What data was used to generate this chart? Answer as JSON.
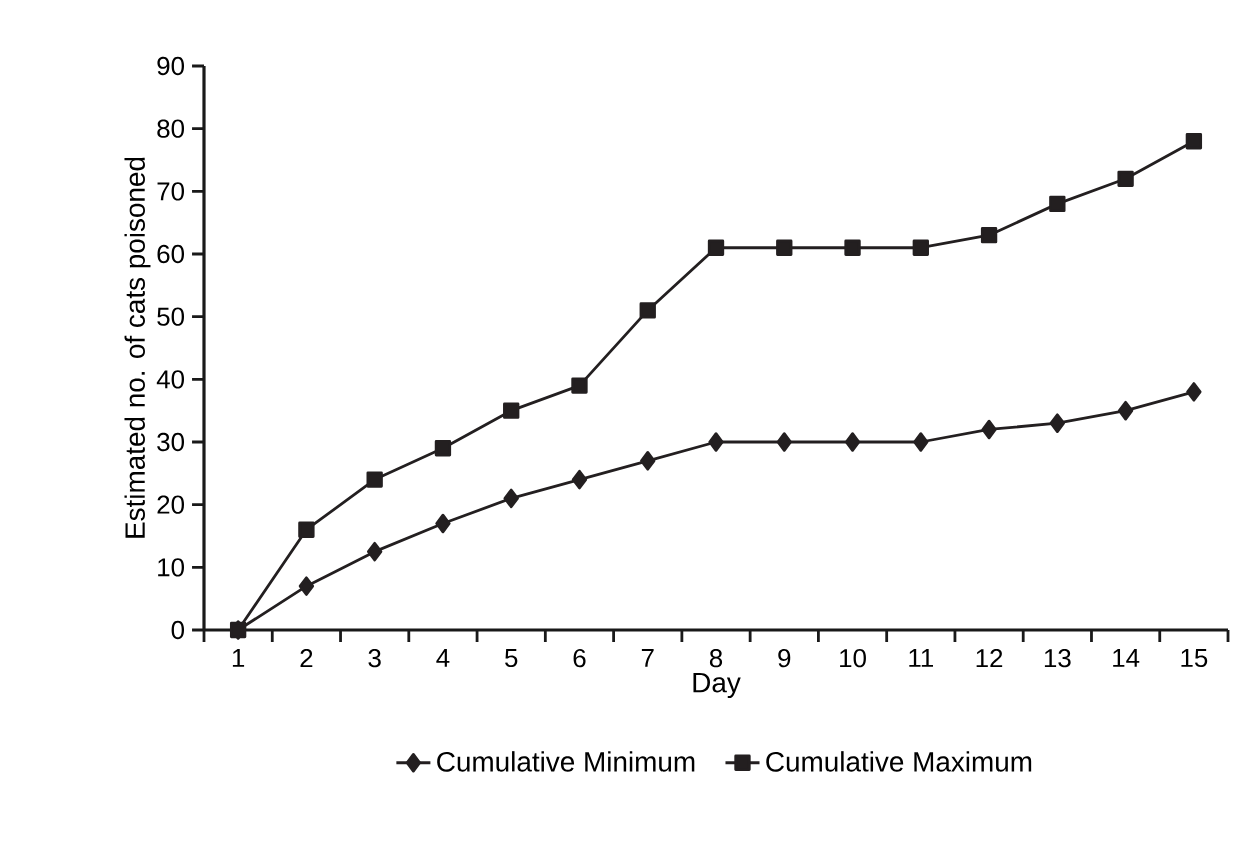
{
  "chart_data": {
    "type": "line",
    "xlabel": "Day",
    "ylabel": "Estimated no. of cats poisoned",
    "categories": [
      "1",
      "2",
      "3",
      "4",
      "5",
      "6",
      "7",
      "8",
      "9",
      "10",
      "11",
      "12",
      "13",
      "14",
      "15"
    ],
    "series": [
      {
        "name": "Cumulative Minimum",
        "color": "#231f20",
        "marker": "diamond",
        "values": [
          0,
          7,
          12.5,
          17,
          21,
          24,
          27,
          30,
          30,
          30,
          30,
          32,
          33,
          35,
          38
        ]
      },
      {
        "name": "Cumulative Maximum",
        "color": "#231f20",
        "marker": "square",
        "values": [
          0,
          16,
          24,
          29,
          35,
          39,
          51,
          61,
          61,
          61,
          61,
          63,
          68,
          72,
          78
        ]
      }
    ],
    "ylim": [
      0,
      90
    ],
    "yticks": [
      0,
      10,
      20,
      30,
      40,
      50,
      60,
      70,
      80,
      90
    ],
    "grid": false,
    "legend": "bottom",
    "line_style": "solid"
  }
}
